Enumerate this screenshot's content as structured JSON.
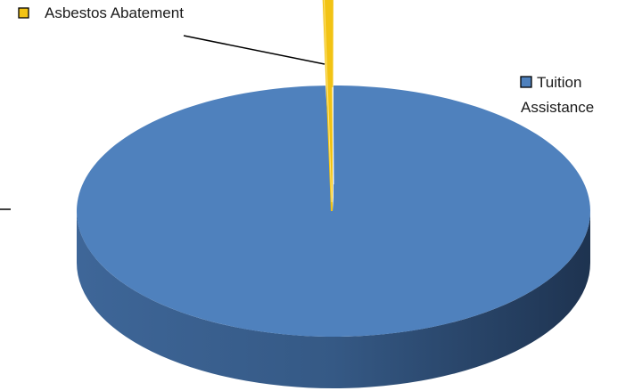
{
  "chart_data": {
    "type": "pie",
    "style": "3d",
    "slices": [
      {
        "label": "Tuition Assistance",
        "label_lines": [
          "Tuition",
          "Assistance"
        ],
        "value": 99.5,
        "color": "#4F81BD",
        "dark": "#2F4F7A"
      },
      {
        "label": "Asbestos Abatement",
        "label_lines": [
          "Asbestos Abatement"
        ],
        "value": 0.5,
        "color": "#F2C314",
        "dark": "#B58F0C",
        "exploded": true
      }
    ]
  }
}
